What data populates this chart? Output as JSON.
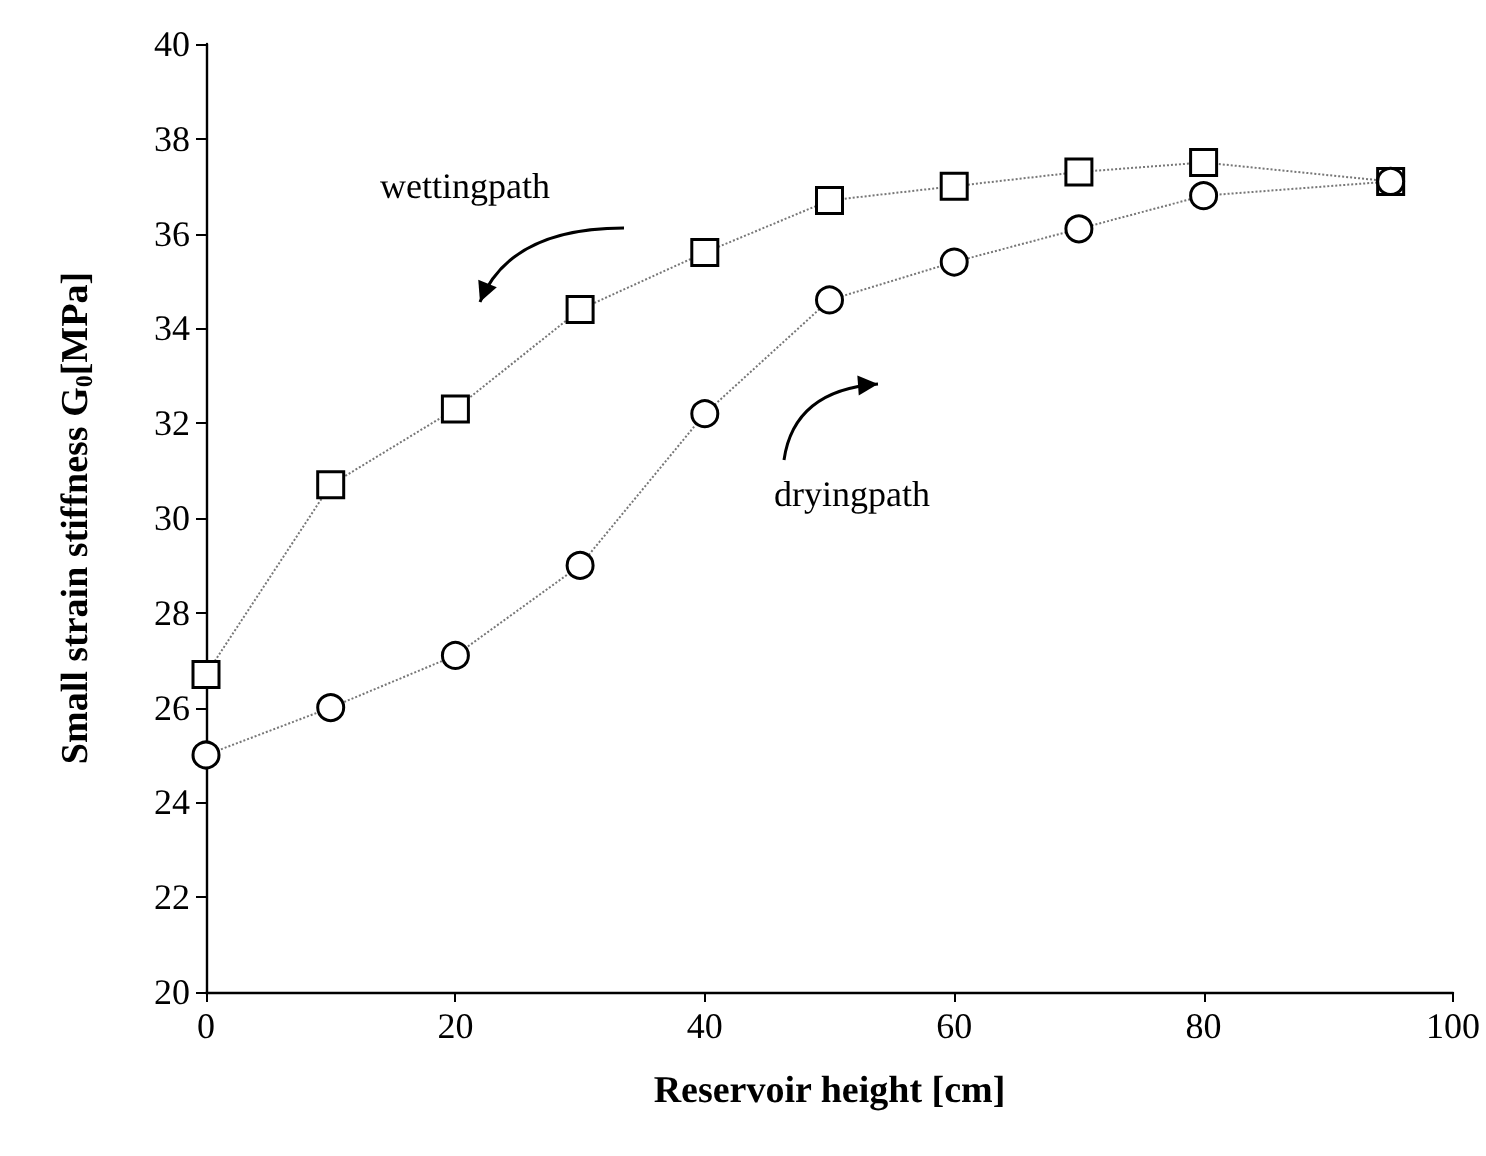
{
  "chart_data": {
    "type": "line",
    "xlabel": "Reservoir height [cm]",
    "ylabel": "Small strain stiffness G$_{0}$[MPa]",
    "x": [
      0,
      10,
      20,
      30,
      40,
      50,
      60,
      70,
      80,
      95
    ],
    "series": [
      {
        "color": "#000000",
        "marker": "square",
        "line_style": "dotted",
        "values": [
          26.7,
          30.7,
          32.3,
          34.4,
          35.6,
          36.7,
          37.0,
          37.3,
          37.5,
          37.1
        ]
      },
      {
        "color": "#000000",
        "marker": "circle",
        "line_style": "dotted",
        "values": [
          25.0,
          26.0,
          27.1,
          29.0,
          32.2,
          34.6,
          35.4,
          36.1,
          36.8,
          37.1
        ]
      }
    ],
    "xlim": [
      0,
      100
    ],
    "xticks": [
      0,
      20,
      40,
      60,
      80,
      100
    ],
    "ylim": [
      20,
      40
    ],
    "yticks": [
      20,
      22,
      24,
      26,
      28,
      30,
      32,
      34,
      36,
      38,
      40
    ],
    "grid": false,
    "annotations": [
      "wettingpath",
      "dryingpath"
    ]
  }
}
